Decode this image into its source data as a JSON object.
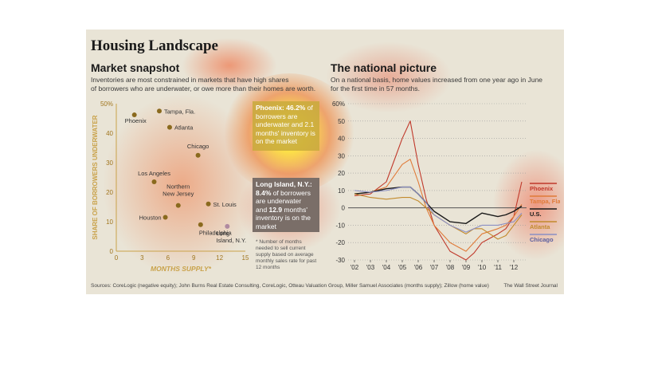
{
  "title": "Housing Landscape",
  "left": {
    "subtitle": "Market snapshot",
    "description_line1": "Inventories are most constrained in markets that have high shares",
    "description_line2": "of borrowers who are underwater, or owe more than their homes are worth.",
    "callout_phoenix": {
      "head": "Phoenix: 46.2%",
      "rest": " of borrowers are underwater and 2.1 months' inventory is on the market"
    },
    "callout_li": {
      "head": "Long Island, N.Y.:",
      "l1a": "8.4%",
      "l1b": " of borrowers",
      "l2": "are underwater",
      "l3a": "and ",
      "l3b": "12.9",
      "l3c": " months'",
      "l4": "inventory is on the",
      "l5": "market"
    },
    "note_lines": [
      "* Number of months",
      "needed to sell current",
      "supply based on average",
      "monthly sales rate for past",
      "12 months"
    ]
  },
  "right": {
    "subtitle": "The national picture",
    "description_line1": "On a national basis, home values increased from one year ago in June",
    "description_line2": "for the first time in 57 months."
  },
  "footer": "Sources: CoreLogic (negative equity); John Burns Real Estate Consulting, CoreLogic, Otteau Valuation Group, Miller Samuel Associates (months supply); Zillow (home value)",
  "credit": "The Wall Street Journal",
  "colors": {
    "phoenix": "#c0392b",
    "tampa": "#e07b39",
    "us": "#1a1a1a",
    "atlanta": "#c28a2c",
    "chicago": "#8a8fc4",
    "dot": "#8a6a1e"
  },
  "chart_data": [
    {
      "type": "scatter",
      "xlabel": "MONTHS SUPPLY*",
      "ylabel": "SHARE OF BORROWERS UNDERWATER",
      "xlim": [
        0,
        15
      ],
      "ylim": [
        0,
        50
      ],
      "xticks": [
        0,
        3,
        6,
        9,
        12,
        15
      ],
      "yticks": [
        0,
        10,
        20,
        30,
        40,
        50
      ],
      "ytick_last_label": "50%",
      "points": [
        {
          "label": "Phoenix",
          "x": 2.1,
          "y": 46.2
        },
        {
          "label": "Tampa, Fla.",
          "x": 5.0,
          "y": 47.5
        },
        {
          "label": "Atlanta",
          "x": 6.2,
          "y": 42.0
        },
        {
          "label": "Chicago",
          "x": 9.5,
          "y": 32.5
        },
        {
          "label": "Los Angeles",
          "x": 4.4,
          "y": 23.5
        },
        {
          "label": "Northern New Jersey",
          "x": 7.2,
          "y": 15.5
        },
        {
          "label": "St. Louis",
          "x": 10.7,
          "y": 16.0
        },
        {
          "label": "Houston",
          "x": 5.7,
          "y": 11.5
        },
        {
          "label": "Philadelphia",
          "x": 9.8,
          "y": 9.0
        },
        {
          "label": "Long Island, N.Y.",
          "x": 12.9,
          "y": 8.4
        }
      ]
    },
    {
      "type": "line",
      "x": [
        2002,
        2003,
        2004,
        2005,
        2005.5,
        2006,
        2006.5,
        2007,
        2008,
        2009,
        2009.5,
        2010,
        2011,
        2011.5,
        2012,
        2012.5
      ],
      "xtick_labels": [
        "'02",
        "'03",
        "'04",
        "'05",
        "'06",
        "'07",
        "'08",
        "'09",
        "'10",
        "'11",
        "'12"
      ],
      "ylim": [
        -30,
        60
      ],
      "yticks": [
        -30,
        -20,
        -10,
        0,
        10,
        20,
        30,
        40,
        50,
        60
      ],
      "ytick_last_label": "60%",
      "series": [
        {
          "name": "Phoenix",
          "values": [
            7,
            8,
            15,
            40,
            50,
            25,
            5,
            -10,
            -25,
            -30,
            -26,
            -20,
            -15,
            -12,
            -5,
            15
          ]
        },
        {
          "name": "Tampa, Fla.",
          "values": [
            8,
            9,
            12,
            25,
            28,
            15,
            0,
            -10,
            -20,
            -25,
            -20,
            -15,
            -12,
            -10,
            -5,
            2
          ]
        },
        {
          "name": "U.S.",
          "values": [
            8,
            9,
            11,
            12,
            12,
            8,
            3,
            -2,
            -8,
            -9,
            -6,
            -3,
            -5,
            -4,
            -2,
            1
          ]
        },
        {
          "name": "Atlanta",
          "values": [
            8,
            6,
            5,
            6,
            6,
            4,
            0,
            -4,
            -10,
            -15,
            -12,
            -12,
            -18,
            -16,
            -10,
            -4
          ]
        },
        {
          "name": "Chicago",
          "values": [
            10,
            9,
            10,
            12,
            12,
            8,
            3,
            -4,
            -10,
            -14,
            -12,
            -10,
            -10,
            -9,
            -8,
            -3
          ]
        }
      ]
    }
  ]
}
